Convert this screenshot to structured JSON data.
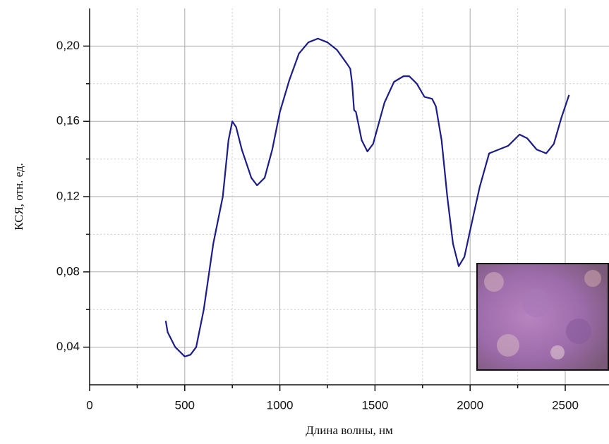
{
  "chart_data": {
    "type": "line",
    "x_label": "Длина волны, нм",
    "y_label": "КСЯ, отн. ед.",
    "x": [
      400,
      410,
      450,
      500,
      530,
      560,
      600,
      650,
      700,
      730,
      750,
      770,
      800,
      850,
      880,
      920,
      960,
      1000,
      1050,
      1100,
      1150,
      1200,
      1250,
      1300,
      1350,
      1370,
      1380,
      1390,
      1400,
      1430,
      1460,
      1490,
      1550,
      1600,
      1650,
      1680,
      1720,
      1760,
      1800,
      1820,
      1850,
      1880,
      1910,
      1940,
      1970,
      2000,
      2050,
      2100,
      2150,
      2200,
      2260,
      2300,
      2350,
      2400,
      2440,
      2480,
      2520
    ],
    "series": [
      {
        "color": "#1c1c8a",
        "values": [
          0.054,
          0.048,
          0.04,
          0.035,
          0.036,
          0.04,
          0.06,
          0.095,
          0.12,
          0.15,
          0.16,
          0.157,
          0.145,
          0.13,
          0.126,
          0.13,
          0.145,
          0.165,
          0.182,
          0.196,
          0.202,
          0.204,
          0.202,
          0.198,
          0.191,
          0.188,
          0.18,
          0.166,
          0.165,
          0.15,
          0.144,
          0.148,
          0.17,
          0.181,
          0.184,
          0.184,
          0.18,
          0.173,
          0.172,
          0.168,
          0.15,
          0.12,
          0.095,
          0.083,
          0.088,
          0.102,
          0.125,
          0.143,
          0.145,
          0.147,
          0.153,
          0.151,
          0.145,
          0.143,
          0.148,
          0.162,
          0.174
        ]
      }
    ],
    "xlim": [
      0,
      2730
    ],
    "ylim": [
      0.02,
      0.22
    ],
    "xticks": [
      0,
      500,
      1000,
      1500,
      2000,
      2500
    ],
    "yticks": [
      {
        "value": 0.04,
        "label": "0,04"
      },
      {
        "value": 0.08,
        "label": "0,08"
      },
      {
        "value": 0.12,
        "label": "0,12"
      },
      {
        "value": 0.16,
        "label": "0,16"
      },
      {
        "value": 0.2,
        "label": "0,20"
      }
    ],
    "xminor": [
      250,
      750,
      1250,
      1750,
      2250
    ],
    "yminor": [
      0.06,
      0.1,
      0.14,
      0.18
    ],
    "grid": true
  }
}
